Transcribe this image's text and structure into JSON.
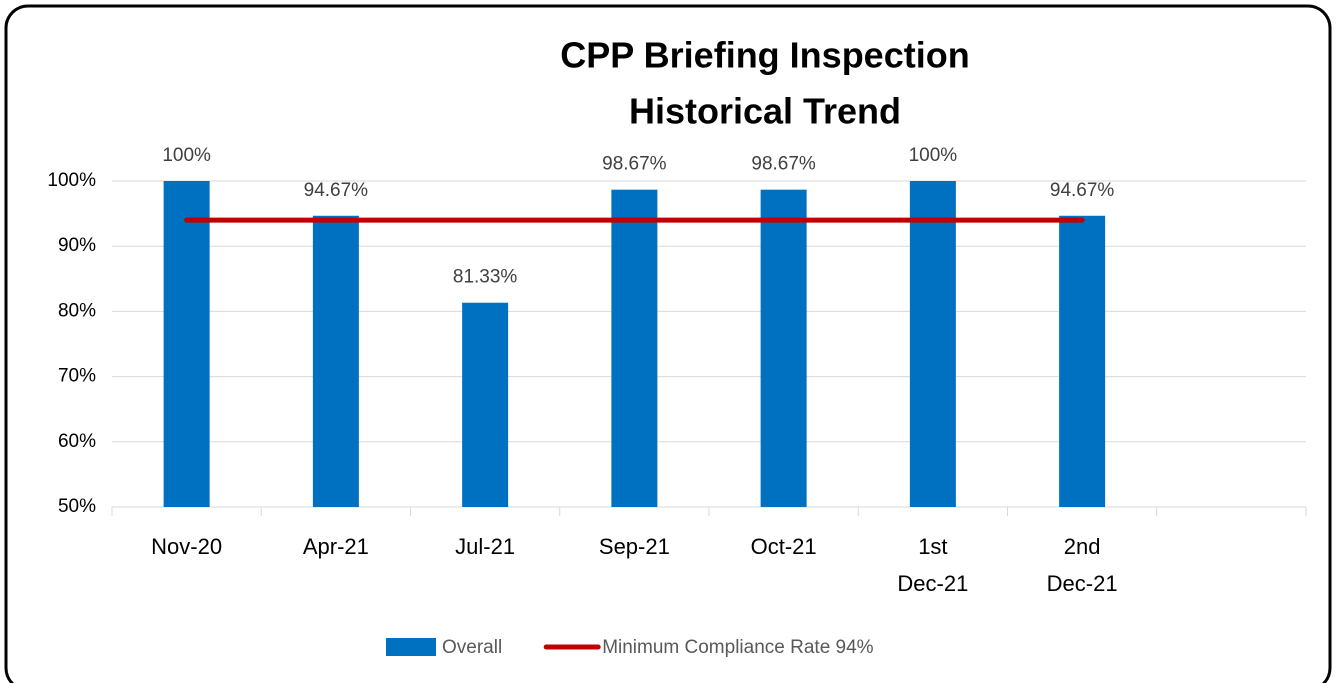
{
  "chart_data": {
    "type": "bar",
    "title": [
      "CPP Briefing Inspection",
      "Historical Trend"
    ],
    "categories": [
      "Nov-20",
      "Apr-21",
      "Jul-21",
      "Sep-21",
      "Oct-21",
      "1st Dec-21",
      "2nd Dec-21",
      null
    ],
    "series": [
      {
        "name": "Overall",
        "type": "bar",
        "color": "#0070c0",
        "values": [
          100,
          94.67,
          81.33,
          98.67,
          98.67,
          100,
          94.67,
          null
        ],
        "value_labels": [
          "100%",
          "94.67%",
          "81.33%",
          "98.67%",
          "98.67%",
          "100%",
          "94.67%",
          null
        ]
      },
      {
        "name": "Minimum Compliance Rate 94%",
        "type": "line",
        "color": "#c00000",
        "values": [
          94,
          94,
          94,
          94,
          94,
          94,
          94,
          null
        ]
      }
    ],
    "ylim": [
      50,
      100
    ],
    "yticks": [
      {
        "value": 50,
        "label": "50%"
      },
      {
        "value": 60,
        "label": "60%"
      },
      {
        "value": 70,
        "label": "70%"
      },
      {
        "value": 80,
        "label": "80%"
      },
      {
        "value": 90,
        "label": "90%"
      },
      {
        "value": 100,
        "label": "100%"
      }
    ],
    "grid": true,
    "legend": "bottom"
  }
}
